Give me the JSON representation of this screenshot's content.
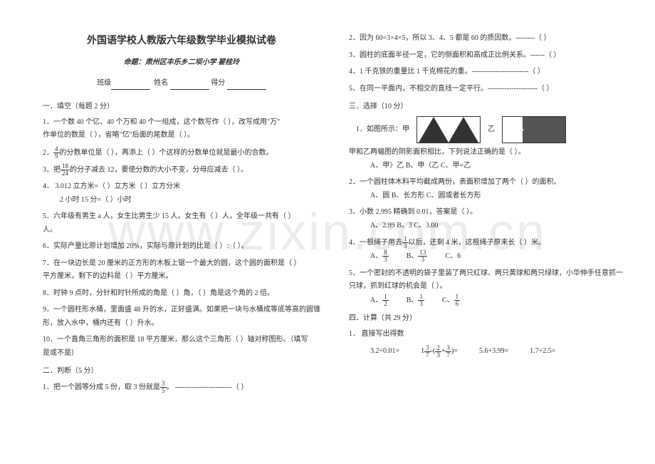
{
  "watermark": "www.zixin.com.cn",
  "header": {
    "title": "外国语学校人教版六年级数学毕业模拟试卷",
    "subtitle": "命题：肃州区丰乐乡二坝小学  翟桂玲",
    "class_label": "班级",
    "name_label": "姓名",
    "score_label": "得分"
  },
  "left": {
    "section1": "一．填空（每题 2 分）",
    "q1a": "1．一个数 40 个亿、40 个万和 40 个一组成，这个数写作（            ），改写成用\"万\"",
    "q1b": "作单位的数是（            ），省略\"亿\"后面的尾数是（            ）。",
    "q2a": "2．",
    "q2_frac_num": "4",
    "q2_frac_den": "9",
    "q2b": "的分数单位是（    ），再添上（    ）个这样的分数单位就是最小的合数。",
    "q3a": "3．把",
    "q3_frac_num": "18",
    "q3_frac_den": "24",
    "q3b": "的分子减去 12，要使分数的大小不变，分母应减去（        ）。",
    "q4": "4． 3.012 立方米=（    ）立方米（    ）立方分米",
    "q4b": "2 小时 15 分=（    ）小时",
    "q5": "5．六年级有男生 a 人，女生比男生少 15 人。女生有（        ）人，全年级一共有（        ）",
    "q5b": "人。",
    "q6": "6．实际产量比原计划增加 20%，实际与原计划的比是（    ）:（    ）。",
    "q7": "7．在一块边长是 20 厘米的正方形的木板上锯一个最大的圆，这个圆的面积是（        ）",
    "q7b": "平方厘米，剩下的边料是（        ）平方厘米。",
    "q8": "8．时钟 9 点时，分针和时针所成的角是（    ）角，（    ）角是这个角的 2 倍。",
    "q9": "9．一个圆柱形水桶，里面盛 48 升的水，正好盛满。如果把一块与水桶成等底等高的圆锥",
    "q9b": "形，放入水中，桶内还有（        ）升水。",
    "q10": "10．一个直角三角形的面积是 18 平方厘米，那么这个三角形（    ）轴对称图形。（填写",
    "q10b": "是或不是）",
    "section2": "二．判断（5 分）",
    "j1a": "1．把一个圆等分成 5 份，取 3 份就是",
    "j1_frac_num": "3",
    "j1_frac_den": "5",
    "j1b": "。  ------------------------（      ）"
  },
  "right": {
    "j2": "2．因为 60=3×4×5，所以 3、4、5 都是 60 的质因数。--------（      ）",
    "j3": "3．圆柱的底面半径一定，它的侧面积和高成正比例关系。------（      ）",
    "j4": "4．1 千克铁的重量比 1 千克棉花的重。------------------------（      ）",
    "j5": "5．在同一平面内，不相交的直线一定平行。---------------------（      ）",
    "section3": "三．选择（10 分）",
    "s1": "1．如图所示：甲",
    "s1_yi": "乙",
    "s1b": "甲和乙两幅图的阴影面积相比，下列说法正确的是（    ）。",
    "s1_choices": "A、甲〉乙        B、甲〈乙        C、甲=乙",
    "s2": "2．一个圆柱体木料平均截成两份，表面积增加了两个（    ）的面积。",
    "s2_choices": "A、圆        B、长方形        C、圆或者长方形",
    "s3": "3．小数 2.995 精确到 0.01，答案是（    ）。",
    "s3_choices": "A、2.99            B、3            C、3.00",
    "s4a": "4．一根绳子用去",
    "s4_frac1_num": "1",
    "s4_frac1_den": "3",
    "s4b": "以后，还剩 4 米，这根绳子原来长（        ）米。",
    "s4_choiceA": "A、",
    "s4_fracA_num": "8",
    "s4_fracA_den": "3",
    "s4_choiceB": "B、",
    "s4_fracB_num": "13",
    "s4_fracB_den": "3",
    "s4_choiceC": "C、6",
    "s5": "5．一个密封的不透明的袋子里装了两只红球、两只黄球和两只绿球，小华伸手任意抓一",
    "s5b": "只球，抓到红球的机会是（    ）。",
    "s5_choiceA": "A、",
    "s5_fracA_num": "1",
    "s5_fracA_den": "2",
    "s5_choiceB": "B、",
    "s5_fracB_num": "1",
    "s5_fracB_den": "3",
    "s5_choiceC": "C、",
    "s5_fracC_num": "1",
    "s5_fracC_den": "6",
    "section4": "四．计算（共 29 分）",
    "calc1": "1．    直接写出得数",
    "calc_a": "3.2÷0.01=",
    "calc_b1": "1",
    "calc_frac1_num": "3",
    "calc_frac1_den": "7",
    "calc_b2": "-(",
    "calc_frac2_num": "2",
    "calc_frac2_den": "3",
    "calc_b3": "+",
    "calc_frac3_num": "3",
    "calc_frac3_den": "7",
    "calc_b4": ")=",
    "calc_c": "5.6+3.99=",
    "calc_d": "1.7÷2.5="
  }
}
